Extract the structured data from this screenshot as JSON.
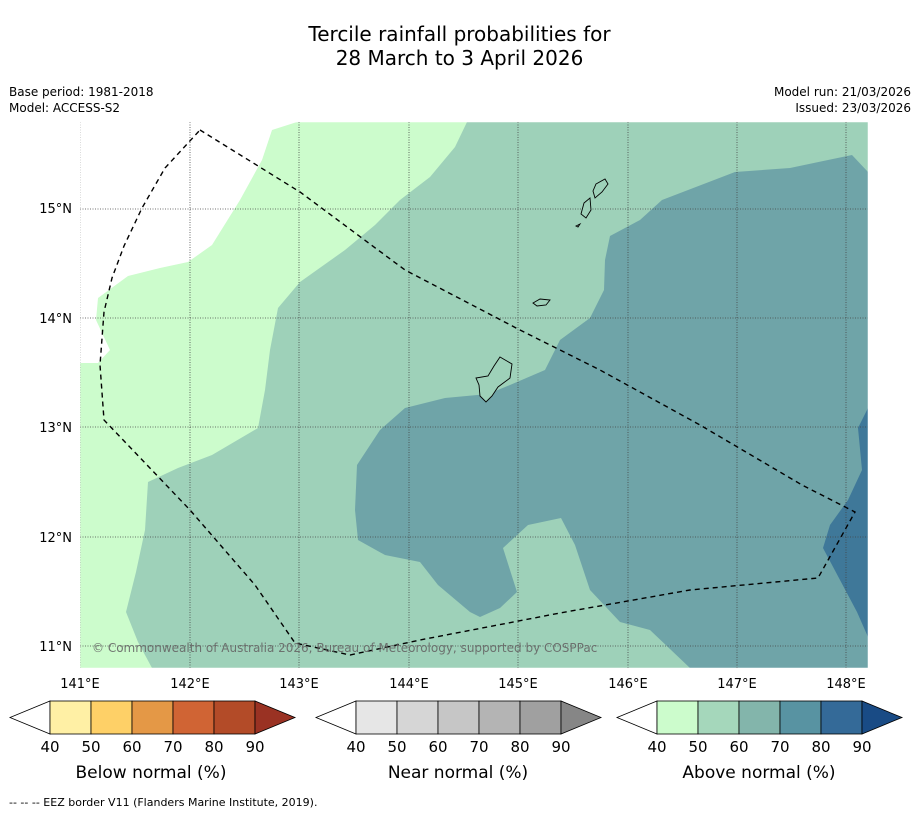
{
  "title": {
    "line1": "Tercile rainfall probabilities for",
    "line2": "28 March to 3 April 2026"
  },
  "info": {
    "base_period": "Base period: 1981-2018",
    "model": "Model: ACCESS-S2",
    "model_run": "Model run: 21/03/2026",
    "issued": "Issued: 23/03/2026"
  },
  "map": {
    "lon_labels": [
      "141°E",
      "142°E",
      "143°E",
      "144°E",
      "145°E",
      "146°E",
      "147°E",
      "148°E"
    ],
    "lat_labels": [
      "15°N",
      "14°N",
      "13°N",
      "12°N",
      "11°N"
    ],
    "copyright": "© Commonwealth of Australia 2026, Bureau of Meteorology, supported by COSPPac",
    "colors": {
      "above_40_50": "#ccfccc",
      "above_50_60": "#9ed1b9",
      "above_60_70": "#6fa4a8",
      "above_70_80": "#3f7899",
      "no_data": "#ffffff"
    }
  },
  "colorbars": [
    {
      "title": "Below normal (%)",
      "ticks": [
        "40",
        "50",
        "60",
        "70",
        "80",
        "90"
      ],
      "colors": [
        "#ffffff",
        "#fff0a5",
        "#fed067",
        "#e49846",
        "#d06434",
        "#b34b28",
        "#9a3223"
      ]
    },
    {
      "title": "Near normal (%)",
      "ticks": [
        "40",
        "50",
        "60",
        "70",
        "80",
        "90"
      ],
      "colors": [
        "#ffffff",
        "#e6e6e6",
        "#d6d6d6",
        "#c6c6c6",
        "#b4b4b4",
        "#a0a0a0",
        "#868686"
      ]
    },
    {
      "title": "Above normal (%)",
      "ticks": [
        "40",
        "50",
        "60",
        "70",
        "80",
        "90"
      ],
      "colors": [
        "#ffffff",
        "#ccfccc",
        "#a5d7bb",
        "#83b5ab",
        "#5893a2",
        "#346a98",
        "#194b85"
      ]
    }
  ],
  "footnote": "--  --  -- EEZ border V11 (Flanders Marine Institute, 2019)."
}
